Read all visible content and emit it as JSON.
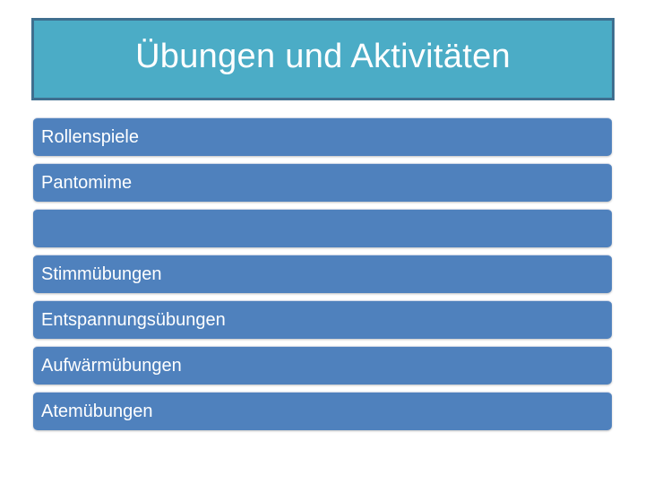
{
  "colors": {
    "title_fill": "#4bacc6",
    "item_fill": "#4f81bd"
  },
  "title": "Übungen und Aktivitäten",
  "items": [
    {
      "label": "Rollenspiele"
    },
    {
      "label": "Pantomime"
    },
    {
      "label": ""
    },
    {
      "label": "Stimmübungen"
    },
    {
      "label": "Entspannungsübungen"
    },
    {
      "label": "Aufwärmübungen"
    },
    {
      "label": "Atemübungen"
    }
  ]
}
